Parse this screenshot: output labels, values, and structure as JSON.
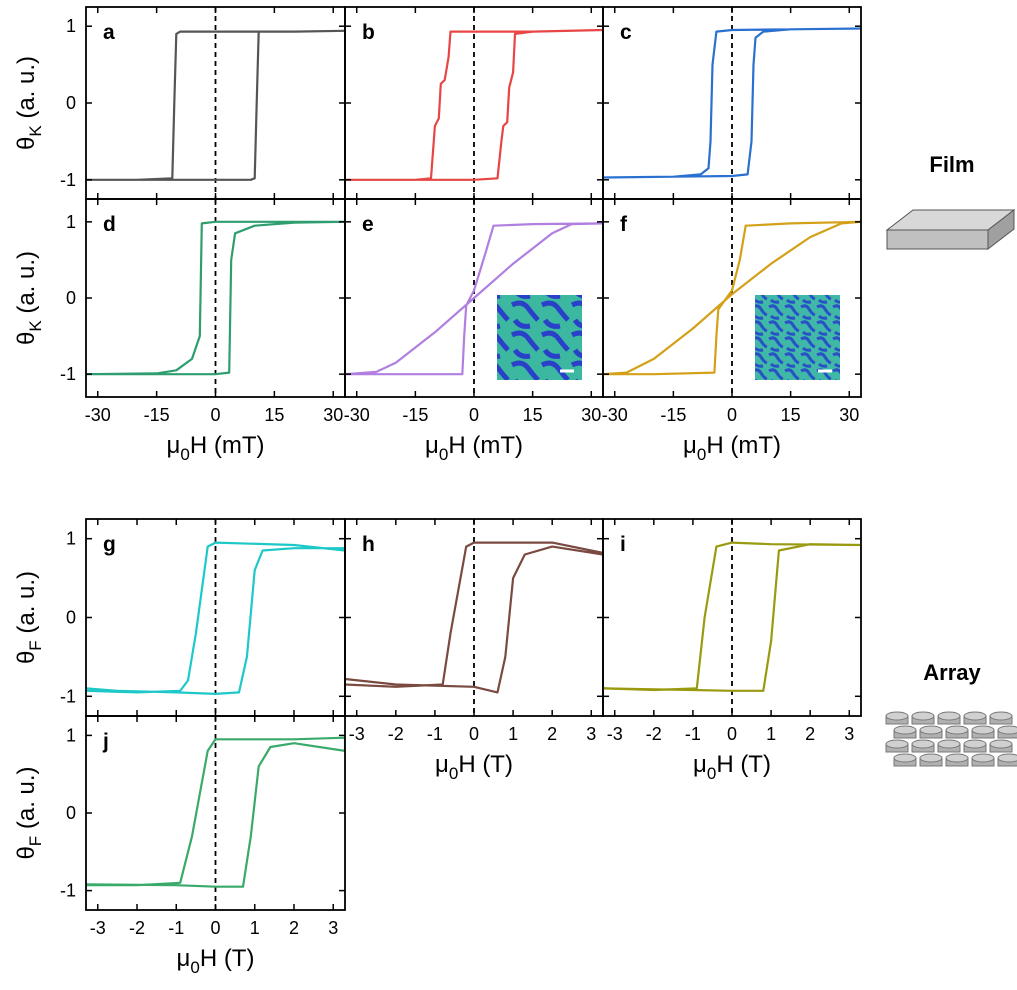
{
  "chart_data": [
    {
      "type": "line",
      "label": "a",
      "color": "#555555",
      "ylabel": [
        "θ",
        "K",
        " (a. u.)"
      ],
      "xlim": [
        -33,
        33
      ],
      "ylim": [
        -1.25,
        1.25
      ],
      "xticks": [
        -30,
        -15,
        0,
        15,
        30
      ],
      "yticks": [
        -1,
        0,
        1
      ],
      "xtick_labels": false,
      "ytick_labels": true,
      "zero_line": true,
      "x": [
        -33,
        -20,
        -10,
        0,
        9,
        10,
        10.5,
        11,
        20,
        33,
        33,
        20,
        10,
        0,
        -9,
        -10,
        -10.5,
        -11,
        -20,
        -33
      ],
      "values": [
        -1,
        -1,
        -1,
        -1,
        -1,
        -0.98,
        0,
        0.93,
        0.93,
        0.94,
        0.94,
        0.93,
        0.93,
        0.93,
        0.93,
        0.9,
        0,
        -0.98,
        -1,
        -1
      ]
    },
    {
      "type": "line",
      "label": "b",
      "color": "#e84545",
      "xlim": [
        -33,
        33
      ],
      "ylim": [
        -1.25,
        1.25
      ],
      "xticks": [
        -30,
        -15,
        0,
        15,
        30
      ],
      "yticks": [
        -1,
        0,
        1
      ],
      "xtick_labels": false,
      "ytick_labels": false,
      "zero_line": true,
      "x": [
        -33,
        -15,
        0,
        6,
        7,
        7.5,
        8.5,
        9,
        10,
        10.5,
        15,
        33,
        33,
        15,
        0,
        -6,
        -6.5,
        -7.5,
        -8.5,
        -9,
        -10,
        -11,
        -15,
        -33
      ],
      "values": [
        -1,
        -1,
        -1,
        -0.98,
        -0.5,
        -0.3,
        -0.25,
        0.2,
        0.4,
        0.9,
        0.93,
        0.95,
        0.95,
        0.93,
        0.93,
        0.93,
        0.6,
        0.3,
        0.25,
        -0.2,
        -0.3,
        -0.98,
        -1,
        -1
      ]
    },
    {
      "type": "line",
      "label": "c",
      "color": "#2a70d0",
      "xlim": [
        -33,
        33
      ],
      "ylim": [
        -1.25,
        1.25
      ],
      "xticks": [
        -30,
        -15,
        0,
        15,
        30
      ],
      "yticks": [
        -1,
        0,
        1
      ],
      "xtick_labels": false,
      "ytick_labels": false,
      "zero_line": true,
      "x": [
        -33,
        -15,
        0,
        4,
        5,
        5.5,
        6,
        8,
        15,
        33,
        33,
        15,
        0,
        -4,
        -5,
        -5.5,
        -6,
        -8,
        -15,
        -33
      ],
      "values": [
        -0.97,
        -0.96,
        -0.95,
        -0.93,
        -0.5,
        0.5,
        0.85,
        0.93,
        0.96,
        0.97,
        0.97,
        0.96,
        0.95,
        0.93,
        0.5,
        -0.5,
        -0.85,
        -0.93,
        -0.96,
        -0.97
      ]
    },
    {
      "type": "line",
      "label": "d",
      "color": "#2e9e6e",
      "xlabel": [
        "μ",
        "0",
        "H (mT)"
      ],
      "ylabel": [
        "θ",
        "K",
        " (a. u.)"
      ],
      "xlim": [
        -33,
        33
      ],
      "ylim": [
        -1.3,
        1.3
      ],
      "xticks": [
        -30,
        -15,
        0,
        15,
        30
      ],
      "yticks": [
        -1,
        0,
        1
      ],
      "xtick_labels": true,
      "ytick_labels": true,
      "zero_line": true,
      "x": [
        -33,
        -10,
        0,
        3.5,
        4,
        5,
        10,
        20,
        33,
        33,
        20,
        0,
        -3.5,
        -4,
        -6,
        -10,
        -15,
        -33
      ],
      "values": [
        -1,
        -1,
        -1,
        -0.98,
        0.5,
        0.85,
        0.95,
        0.99,
        1,
        1,
        1,
        1,
        0.98,
        -0.5,
        -0.8,
        -0.95,
        -0.99,
        -1
      ]
    },
    {
      "type": "line",
      "label": "e",
      "color": "#b07fe0",
      "xlabel": [
        "μ",
        "0",
        "H (mT)"
      ],
      "xlim": [
        -33,
        33
      ],
      "ylim": [
        -1.3,
        1.3
      ],
      "xticks": [
        -30,
        -15,
        0,
        15,
        30
      ],
      "yticks": [
        -1,
        0,
        1
      ],
      "xtick_labels": true,
      "ytick_labels": false,
      "zero_line": true,
      "inset": true,
      "x": [
        -33,
        -20,
        -3,
        -2.5,
        -2,
        0,
        3,
        5,
        15,
        33,
        33,
        25,
        20,
        10,
        0,
        -10,
        -20,
        -25,
        -33
      ],
      "values": [
        -1,
        -1,
        -1,
        -0.5,
        -0.1,
        0.1,
        0.6,
        0.95,
        0.97,
        0.98,
        0.98,
        0.97,
        0.85,
        0.45,
        0,
        -0.45,
        -0.85,
        -0.97,
        -1
      ]
    },
    {
      "type": "line",
      "label": "f",
      "color": "#d4a017",
      "xlabel": [
        "μ",
        "0",
        "H (mT)"
      ],
      "xlim": [
        -33,
        33
      ],
      "ylim": [
        -1.3,
        1.3
      ],
      "xticks": [
        -30,
        -15,
        0,
        15,
        30
      ],
      "yticks": [
        -1,
        0,
        1
      ],
      "xtick_labels": true,
      "ytick_labels": false,
      "zero_line": true,
      "inset": true,
      "x": [
        -33,
        -20,
        -4.5,
        -4,
        -3.5,
        0,
        2,
        3.5,
        15,
        33,
        33,
        28,
        20,
        10,
        0,
        -10,
        -20,
        -27,
        -33
      ],
      "values": [
        -1,
        -1,
        -0.98,
        -0.5,
        -0.15,
        0.1,
        0.5,
        0.95,
        0.98,
        1,
        1,
        0.98,
        0.8,
        0.45,
        0.05,
        -0.4,
        -0.8,
        -0.98,
        -1
      ]
    },
    {
      "type": "line",
      "label": "g",
      "color": "#1ec8c8",
      "ylabel": [
        "θ",
        "F",
        " (a. u.)"
      ],
      "xlim": [
        -3.3,
        3.3
      ],
      "ylim": [
        -1.25,
        1.25
      ],
      "xticks": [
        -3,
        -2,
        -1,
        0,
        1,
        2,
        3
      ],
      "yticks": [
        -1,
        0,
        1
      ],
      "xtick_labels": false,
      "ytick_labels": true,
      "zero_line": true,
      "x": [
        -3.3,
        -2.5,
        -1,
        0,
        0.6,
        0.8,
        1,
        1.2,
        2,
        3.3,
        3.3,
        2,
        0,
        -0.2,
        -0.5,
        -0.7,
        -0.9,
        -2,
        -3.3
      ],
      "values": [
        -0.9,
        -0.93,
        -0.95,
        -0.97,
        -0.95,
        -0.5,
        0.6,
        0.85,
        0.88,
        0.88,
        0.85,
        0.92,
        0.95,
        0.9,
        -0.2,
        -0.8,
        -0.93,
        -0.95,
        -0.93
      ]
    },
    {
      "type": "line",
      "label": "h",
      "color": "#7a4a40",
      "xlabel": [
        "μ",
        "0",
        "H (T)"
      ],
      "xlim": [
        -3.3,
        3.3
      ],
      "ylim": [
        -1.25,
        1.25
      ],
      "xticks": [
        -3,
        -2,
        -1,
        0,
        1,
        2,
        3
      ],
      "yticks": [
        -1,
        0,
        1
      ],
      "xtick_labels": true,
      "ytick_labels": false,
      "zero_line": true,
      "x": [
        -3.3,
        -2,
        0,
        0.6,
        0.8,
        1,
        1.3,
        2,
        3.3,
        3.3,
        2,
        0,
        -0.2,
        -0.6,
        -0.8,
        -2,
        -3.3
      ],
      "values": [
        -0.78,
        -0.85,
        -0.88,
        -0.95,
        -0.5,
        0.5,
        0.8,
        0.9,
        0.8,
        0.82,
        0.95,
        0.95,
        0.9,
        -0.2,
        -0.85,
        -0.88,
        -0.85
      ]
    },
    {
      "type": "line",
      "label": "i",
      "color": "#9a9a10",
      "xlabel": [
        "μ",
        "0",
        "H (T)"
      ],
      "xlim": [
        -3.3,
        3.3
      ],
      "ylim": [
        -1.25,
        1.25
      ],
      "xticks": [
        -3,
        -2,
        -1,
        0,
        1,
        2,
        3
      ],
      "yticks": [
        -1,
        0,
        1
      ],
      "xtick_labels": true,
      "ytick_labels": false,
      "zero_line": true,
      "x": [
        -3.3,
        -1,
        0,
        0.8,
        1,
        1.2,
        2,
        3.3,
        3.3,
        1,
        0,
        -0.4,
        -0.7,
        -0.9,
        -2,
        -3.3
      ],
      "values": [
        -0.9,
        -0.92,
        -0.93,
        -0.93,
        -0.3,
        0.85,
        0.93,
        0.92,
        0.92,
        0.93,
        0.95,
        0.9,
        0,
        -0.9,
        -0.92,
        -0.9
      ]
    },
    {
      "type": "line",
      "label": "j",
      "color": "#3aaa6a",
      "xlabel": [
        "μ",
        "0",
        "H (T)"
      ],
      "ylabel": [
        "θ",
        "F",
        " (a. u.)"
      ],
      "xlim": [
        -3.3,
        3.3
      ],
      "ylim": [
        -1.25,
        1.25
      ],
      "xticks": [
        -3,
        -2,
        -1,
        0,
        1,
        2,
        3
      ],
      "yticks": [
        -1,
        0,
        1
      ],
      "xtick_labels": true,
      "ytick_labels": true,
      "zero_line": true,
      "x": [
        -3.3,
        -1,
        0,
        0.7,
        0.9,
        1.1,
        1.4,
        2,
        3.3,
        3.3,
        2,
        0,
        -0.2,
        -0.6,
        -0.9,
        -2,
        -3.3
      ],
      "values": [
        -0.92,
        -0.93,
        -0.95,
        -0.95,
        -0.3,
        0.6,
        0.85,
        0.9,
        0.8,
        0.97,
        0.95,
        0.95,
        0.8,
        -0.3,
        -0.9,
        -0.93,
        -0.93
      ]
    }
  ],
  "side_labels": {
    "film": "Film",
    "array": "Array"
  }
}
